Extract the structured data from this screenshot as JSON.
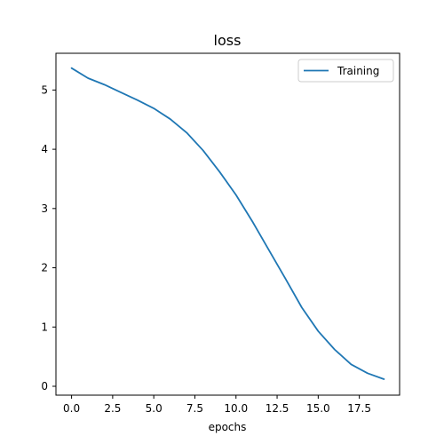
{
  "chart_data": {
    "type": "line",
    "title": "loss",
    "xlabel": "epochs",
    "ylabel": "",
    "xlim": [
      -0.95,
      19.95
    ],
    "ylim": [
      -0.15,
      5.62
    ],
    "xticks": [
      0.0,
      2.5,
      5.0,
      7.5,
      10.0,
      12.5,
      15.0,
      17.5
    ],
    "xtick_labels": [
      "0.0",
      "2.5",
      "5.0",
      "7.5",
      "10.0",
      "12.5",
      "15.0",
      "17.5"
    ],
    "yticks": [
      0,
      1,
      2,
      3,
      4,
      5
    ],
    "ytick_labels": [
      "0",
      "1",
      "2",
      "3",
      "4",
      "5"
    ],
    "grid": false,
    "legend_position": "top-right",
    "series": [
      {
        "name": "Training",
        "color": "#1f77b4",
        "x": [
          0,
          1,
          2,
          3,
          4,
          5,
          6,
          7,
          8,
          9,
          10,
          11,
          12,
          13,
          14,
          15,
          16,
          17,
          18,
          19
        ],
        "y": [
          5.37,
          5.2,
          5.09,
          4.96,
          4.83,
          4.69,
          4.51,
          4.28,
          3.98,
          3.62,
          3.23,
          2.78,
          2.3,
          1.82,
          1.33,
          0.93,
          0.62,
          0.37,
          0.22,
          0.12
        ]
      }
    ]
  }
}
